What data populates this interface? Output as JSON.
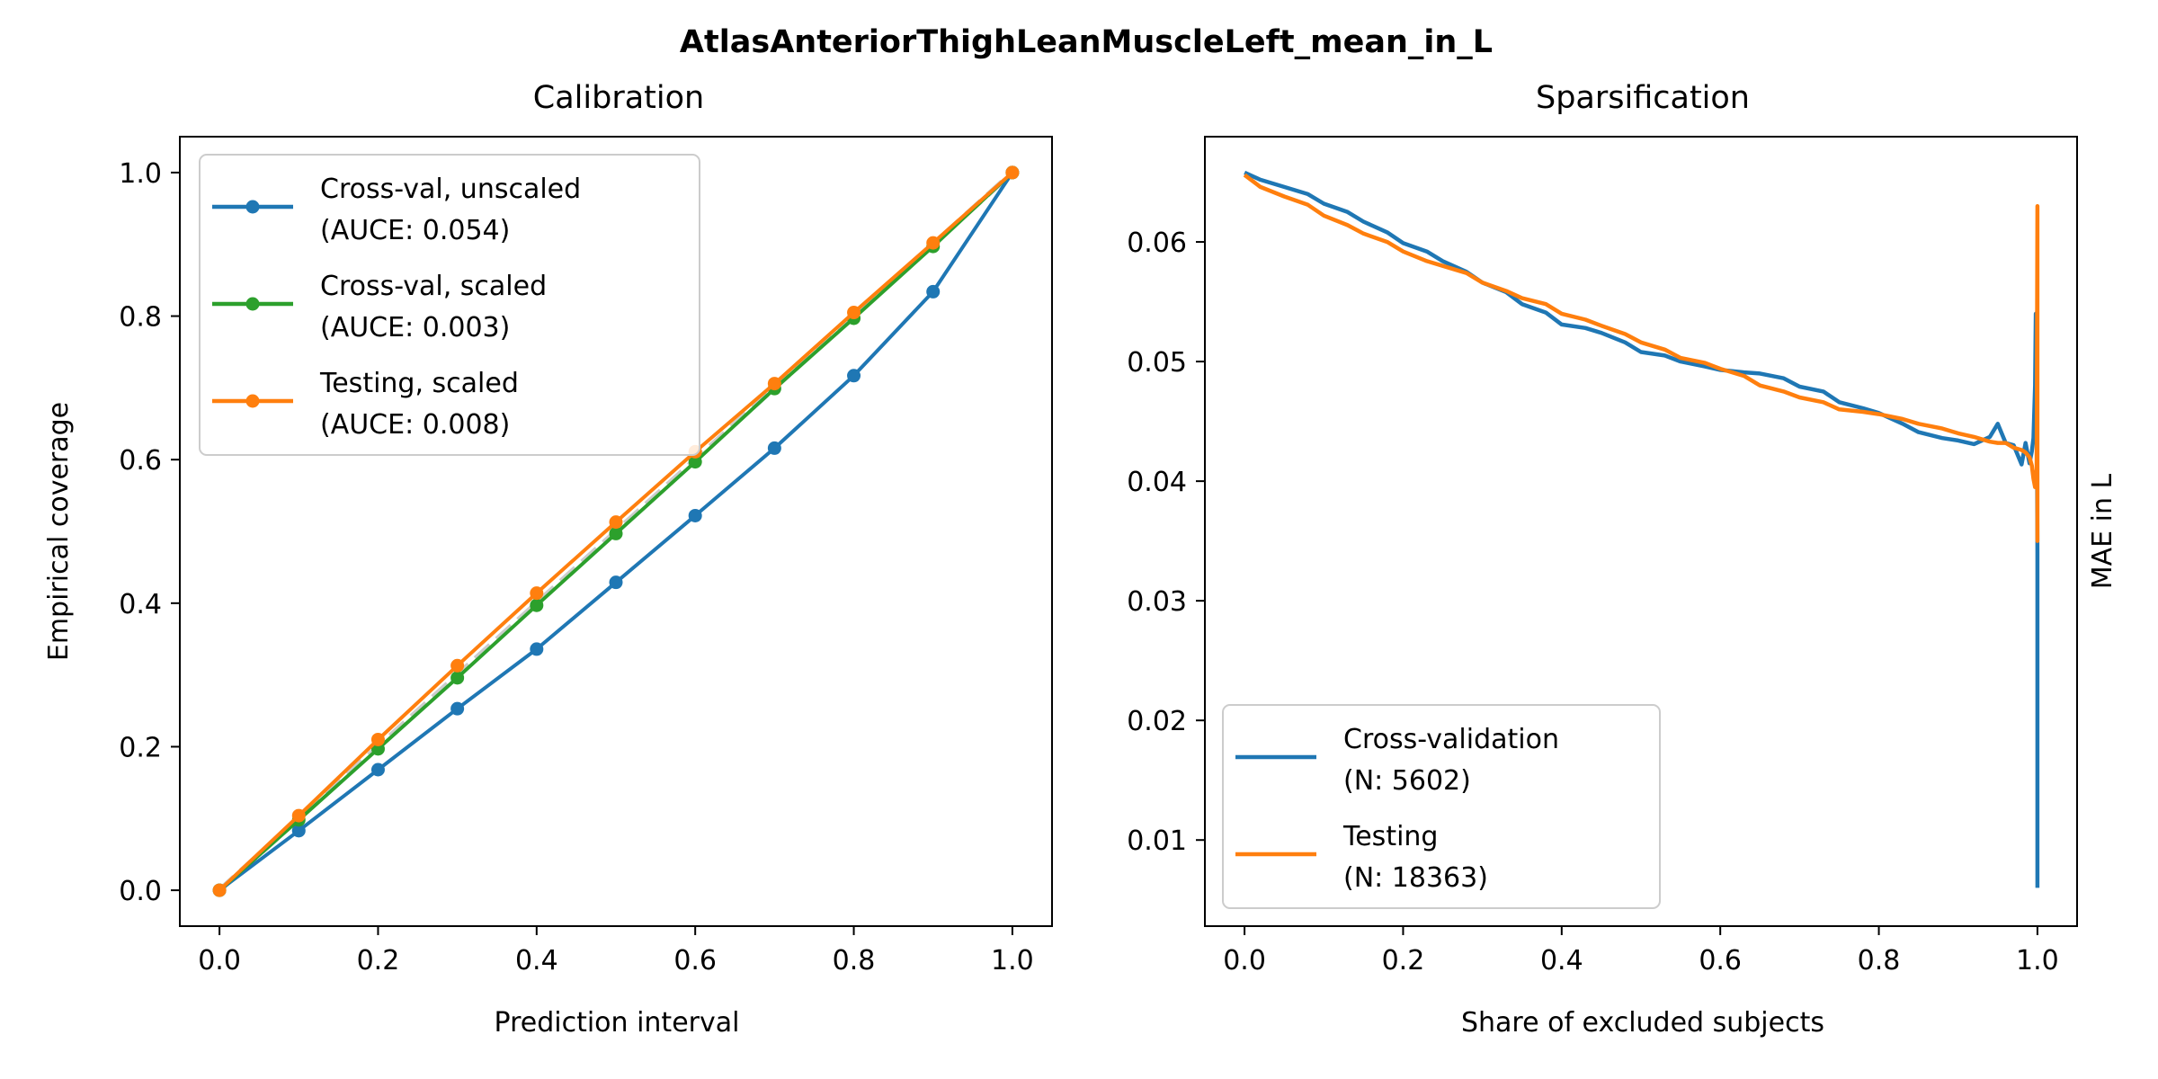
{
  "suptitle": "AtlasAnteriorThighLeanMuscleLeft_mean_in_L",
  "chart_data": [
    {
      "type": "line",
      "title": "Calibration",
      "xlabel": "Prediction interval",
      "ylabel": "Empirical coverage",
      "xlim": [
        -0.05,
        1.05
      ],
      "ylim": [
        -0.05,
        1.05
      ],
      "xticks": [
        0.0,
        0.2,
        0.4,
        0.6,
        0.8,
        1.0
      ],
      "yticks": [
        0.0,
        0.2,
        0.4,
        0.6,
        0.8,
        1.0
      ],
      "xtick_labels": [
        "0.0",
        "0.2",
        "0.4",
        "0.6",
        "0.8",
        "1.0"
      ],
      "ytick_labels": [
        "0.0",
        "0.2",
        "0.4",
        "0.6",
        "0.8",
        "1.0"
      ],
      "reference_line": {
        "x": [
          0,
          1
        ],
        "y": [
          0,
          1
        ],
        "color": "#cccccc",
        "style": "dashed"
      },
      "legend_position": "upper-left",
      "series": [
        {
          "name": "Cross-val, unscaled\n(AUCE: 0.054)",
          "legend_lines": [
            "Cross-val, unscaled",
            "(AUCE: 0.054)"
          ],
          "color": "#1f77b4",
          "marker": "circle",
          "x": [
            0.0,
            0.1,
            0.2,
            0.3,
            0.4,
            0.5,
            0.6,
            0.7,
            0.8,
            0.9,
            1.0
          ],
          "y": [
            0.0,
            0.083,
            0.168,
            0.253,
            0.336,
            0.429,
            0.522,
            0.616,
            0.717,
            0.834,
            1.0
          ]
        },
        {
          "name": "Cross-val, scaled\n(AUCE: 0.003)",
          "legend_lines": [
            "Cross-val, scaled",
            "(AUCE: 0.003)"
          ],
          "color": "#2ca02c",
          "marker": "circle",
          "x": [
            0.0,
            0.1,
            0.2,
            0.3,
            0.4,
            0.5,
            0.6,
            0.7,
            0.8,
            0.9,
            1.0
          ],
          "y": [
            0.0,
            0.098,
            0.197,
            0.296,
            0.397,
            0.497,
            0.597,
            0.699,
            0.797,
            0.897,
            1.0
          ]
        },
        {
          "name": "Testing, scaled\n(AUCE: 0.008)",
          "legend_lines": [
            "Testing, scaled",
            "(AUCE: 0.008)"
          ],
          "color": "#ff7f0e",
          "marker": "circle",
          "x": [
            0.0,
            0.1,
            0.2,
            0.3,
            0.4,
            0.5,
            0.6,
            0.7,
            0.8,
            0.9,
            1.0
          ],
          "y": [
            0.0,
            0.104,
            0.21,
            0.313,
            0.414,
            0.513,
            0.611,
            0.706,
            0.805,
            0.902,
            1.0
          ]
        }
      ]
    },
    {
      "type": "line",
      "title": "Sparsification",
      "xlabel": "Share of excluded subjects",
      "ylabel": "MAE in L",
      "ylabel_side": "right",
      "xlim": [
        -0.05,
        1.05
      ],
      "ylim": [
        0.0028,
        0.0688
      ],
      "xticks": [
        0.0,
        0.2,
        0.4,
        0.6,
        0.8,
        1.0
      ],
      "yticks": [
        0.01,
        0.02,
        0.03,
        0.04,
        0.05,
        0.06
      ],
      "xtick_labels": [
        "0.0",
        "0.2",
        "0.4",
        "0.6",
        "0.8",
        "1.0"
      ],
      "ytick_labels": [
        "0.01",
        "0.02",
        "0.03",
        "0.04",
        "0.05",
        "0.06"
      ],
      "legend_position": "lower-left",
      "series": [
        {
          "name": "Cross-validation\n(N: 5602)",
          "legend_lines": [
            "Cross-validation",
            "(N: 5602)"
          ],
          "color": "#1f77b4",
          "x": [
            0.0,
            0.02,
            0.05,
            0.08,
            0.1,
            0.13,
            0.15,
            0.18,
            0.2,
            0.23,
            0.25,
            0.28,
            0.3,
            0.33,
            0.35,
            0.38,
            0.4,
            0.43,
            0.45,
            0.48,
            0.5,
            0.53,
            0.55,
            0.58,
            0.6,
            0.63,
            0.65,
            0.68,
            0.7,
            0.73,
            0.75,
            0.78,
            0.8,
            0.83,
            0.85,
            0.88,
            0.9,
            0.92,
            0.94,
            0.95,
            0.96,
            0.97,
            0.98,
            0.985,
            0.99,
            0.993,
            0.995,
            0.997,
            0.998,
            0.999,
            1.0,
            1.0,
            1.0,
            1.0
          ],
          "y": [
            0.0658,
            0.0652,
            0.0646,
            0.064,
            0.0632,
            0.0625,
            0.0617,
            0.0608,
            0.0599,
            0.0592,
            0.0584,
            0.0575,
            0.0566,
            0.0558,
            0.0548,
            0.0541,
            0.0531,
            0.0528,
            0.0524,
            0.0516,
            0.0508,
            0.0505,
            0.05,
            0.0496,
            0.0493,
            0.0491,
            0.049,
            0.0486,
            0.0479,
            0.0475,
            0.0466,
            0.0461,
            0.0457,
            0.0448,
            0.0441,
            0.0436,
            0.0434,
            0.0431,
            0.0437,
            0.0448,
            0.0432,
            0.043,
            0.0414,
            0.0432,
            0.0415,
            0.0425,
            0.0436,
            0.048,
            0.054,
            0.052,
            0.034,
            0.028,
            0.01,
            0.006
          ]
        },
        {
          "name": "Testing\n(N: 18363)",
          "legend_lines": [
            "Testing",
            "(N: 18363)"
          ],
          "color": "#ff7f0e",
          "x": [
            0.0,
            0.02,
            0.05,
            0.08,
            0.1,
            0.13,
            0.15,
            0.18,
            0.2,
            0.23,
            0.25,
            0.28,
            0.3,
            0.33,
            0.35,
            0.38,
            0.4,
            0.43,
            0.45,
            0.48,
            0.5,
            0.53,
            0.55,
            0.58,
            0.6,
            0.63,
            0.65,
            0.68,
            0.7,
            0.73,
            0.75,
            0.78,
            0.8,
            0.83,
            0.85,
            0.88,
            0.9,
            0.92,
            0.94,
            0.95,
            0.96,
            0.97,
            0.98,
            0.985,
            0.99,
            0.993,
            0.995,
            0.997,
            0.998,
            0.999,
            1.0,
            1.0,
            1.0
          ],
          "y": [
            0.0656,
            0.0646,
            0.0638,
            0.0631,
            0.0622,
            0.0614,
            0.0607,
            0.06,
            0.0592,
            0.0584,
            0.058,
            0.0574,
            0.0566,
            0.0559,
            0.0553,
            0.0548,
            0.054,
            0.0535,
            0.053,
            0.0523,
            0.0516,
            0.051,
            0.0503,
            0.0499,
            0.0494,
            0.0488,
            0.048,
            0.0475,
            0.047,
            0.0466,
            0.046,
            0.0458,
            0.0456,
            0.0452,
            0.0448,
            0.0444,
            0.044,
            0.0437,
            0.0433,
            0.0432,
            0.0432,
            0.0428,
            0.0426,
            0.0424,
            0.042,
            0.0413,
            0.0402,
            0.0395,
            0.0408,
            0.04,
            0.063,
            0.035,
            0.044
          ]
        }
      ]
    }
  ]
}
